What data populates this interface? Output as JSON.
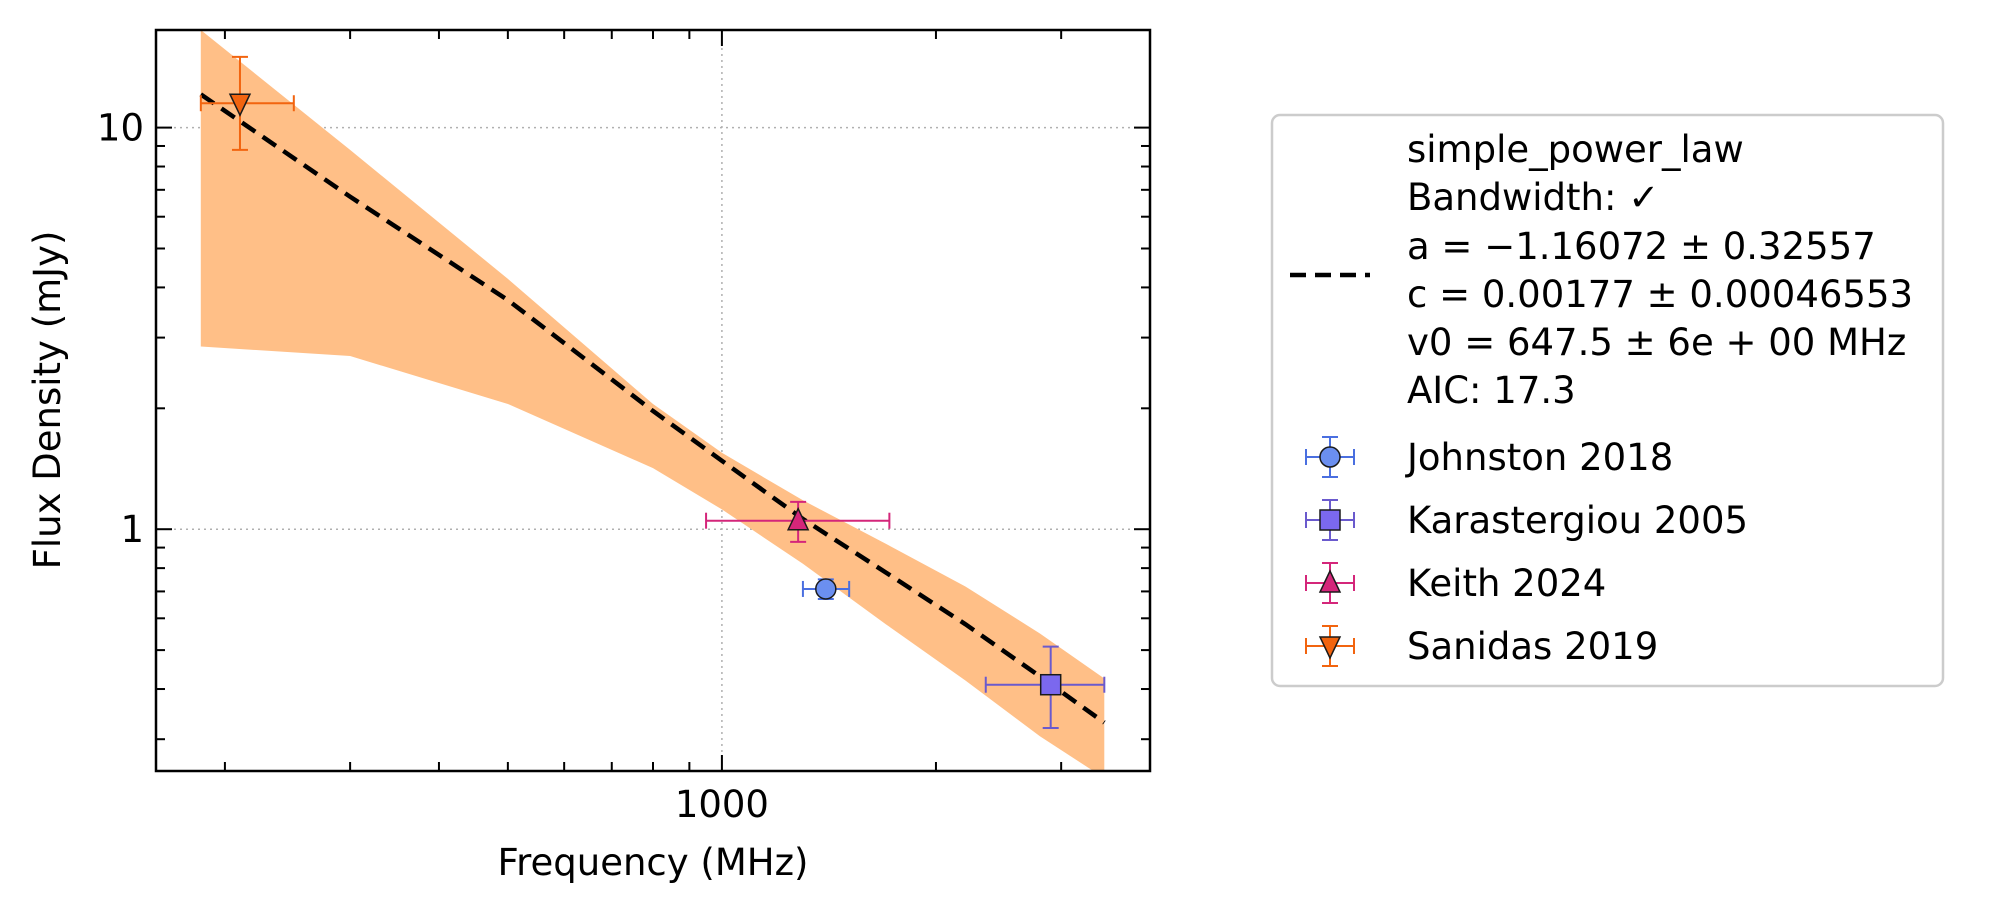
{
  "chart_data": {
    "type": "scatter",
    "title": "",
    "xlabel": "Frequency (MHz)",
    "ylabel": "Flux Density (mJy)",
    "xscale": "log",
    "yscale": "log",
    "xlim": [
      160,
      4000
    ],
    "ylim": [
      0.25,
      17.5
    ],
    "x_ticks": [
      {
        "value": 1000,
        "label": "1000"
      }
    ],
    "y_ticks": [
      {
        "value": 1,
        "label": "1"
      },
      {
        "value": 10,
        "label": "10"
      }
    ],
    "grid": true,
    "legend_position": "outside-right",
    "fit": {
      "model_label": "simple_power_law",
      "legend_lines": [
        "simple_power_law",
        "Bandwidth: ✓",
        "a = −1.16072 ± 0.32557",
        "c = 0.00177 ± 0.00046553",
        "v0 = 647.5 ± 6e + 00 MHz",
        "AIC: 17.3"
      ],
      "line_style": "dashed",
      "color": "#000000",
      "band_color": "#ffbf87",
      "x": [
        185,
        300,
        500,
        800,
        1000,
        1300,
        1700,
        2200,
        2800,
        3450
      ],
      "y": [
        12.1,
        6.73,
        3.72,
        1.97,
        1.48,
        1.06,
        0.78,
        0.58,
        0.43,
        0.33
      ],
      "band_upper": [
        17.5,
        8.8,
        4.2,
        2.05,
        1.55,
        1.18,
        0.92,
        0.72,
        0.55,
        0.425
      ],
      "band_lower": [
        2.85,
        2.7,
        2.05,
        1.42,
        1.12,
        0.82,
        0.58,
        0.42,
        0.305,
        0.24
      ]
    },
    "series": [
      {
        "name": "Johnston 2018",
        "marker": "circle",
        "color": "#6b8ff0",
        "edge_color": "#4a6fe0",
        "points": [
          {
            "x": 1400,
            "y": 0.71,
            "xerr": [
              1300,
              1510
            ],
            "yerr": [
              0.67,
              0.75
            ]
          }
        ]
      },
      {
        "name": "Karastergiou 2005",
        "marker": "square",
        "color": "#7b68ee",
        "edge_color": "#6a5acd",
        "points": [
          {
            "x": 2900,
            "y": 0.41,
            "xerr": [
              2350,
              3450
            ],
            "yerr": [
              0.32,
              0.51
            ]
          }
        ]
      },
      {
        "name": "Keith 2024",
        "marker": "triangle-up",
        "color": "#d4267a",
        "edge_color": "#d4267a",
        "points": [
          {
            "x": 1280,
            "y": 1.05,
            "xerr": [
              950,
              1720
            ],
            "yerr": [
              0.93,
              1.17
            ]
          }
        ]
      },
      {
        "name": "Sanidas 2019",
        "marker": "triangle-down",
        "color": "#f2640f",
        "edge_color": "#f2640f",
        "points": [
          {
            "x": 210,
            "y": 11.5,
            "xerr": [
              185,
              250
            ],
            "yerr": [
              8.8,
              15.0
            ]
          }
        ]
      }
    ]
  }
}
